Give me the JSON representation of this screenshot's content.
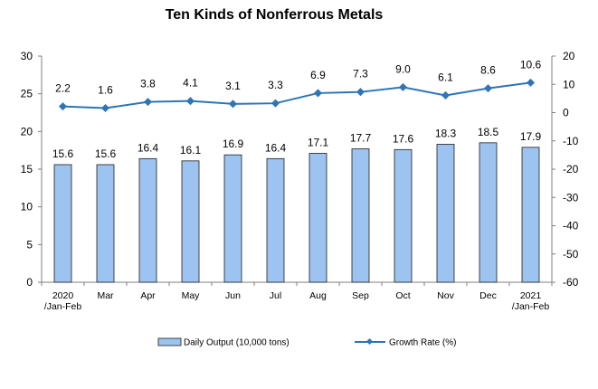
{
  "chart_data": {
    "type": "bar",
    "title": "Ten Kinds of Nonferrous Metals",
    "categories": [
      [
        "2020",
        "/Jan-Feb"
      ],
      [
        "Mar"
      ],
      [
        "Apr"
      ],
      [
        "May"
      ],
      [
        "Jun"
      ],
      [
        "Jul"
      ],
      [
        "Aug"
      ],
      [
        "Sep"
      ],
      [
        "Oct"
      ],
      [
        "Nov"
      ],
      [
        "Dec"
      ],
      [
        "2021",
        "/Jan-Feb"
      ]
    ],
    "series": [
      {
        "name": "Daily Output (10,000 tons)",
        "type": "bar",
        "axis": "left",
        "color": "#9DC3F0",
        "values": [
          15.6,
          15.6,
          16.4,
          16.1,
          16.9,
          16.4,
          17.1,
          17.7,
          17.6,
          18.3,
          18.5,
          17.9
        ]
      },
      {
        "name": "Growth Rate (%)",
        "type": "line",
        "axis": "right",
        "color": "#2E75B6",
        "values": [
          2.2,
          1.6,
          3.8,
          4.1,
          3.1,
          3.3,
          6.9,
          7.3,
          9.0,
          6.1,
          8.6,
          10.6
        ]
      }
    ],
    "ylim_left": [
      0,
      30
    ],
    "yticks_left": [
      "0",
      "5",
      "10",
      "15",
      "20",
      "25",
      "30"
    ],
    "ylim_right": [
      -60,
      20
    ],
    "yticks_right": [
      "-60",
      "-50",
      "-40",
      "-30",
      "-20",
      "-10",
      "0",
      "10",
      "20"
    ],
    "bar_labels": [
      "15.6",
      "15.6",
      "16.4",
      "16.1",
      "16.9",
      "16.4",
      "17.1",
      "17.7",
      "17.6",
      "18.3",
      "18.5",
      "17.9"
    ],
    "line_labels": [
      "2.2",
      "1.6",
      "3.8",
      "4.1",
      "3.1",
      "3.3",
      "6.9",
      "7.3",
      "9.0",
      "6.1",
      "8.6",
      "10.6"
    ],
    "grid": false,
    "legend_position": "bottom"
  }
}
